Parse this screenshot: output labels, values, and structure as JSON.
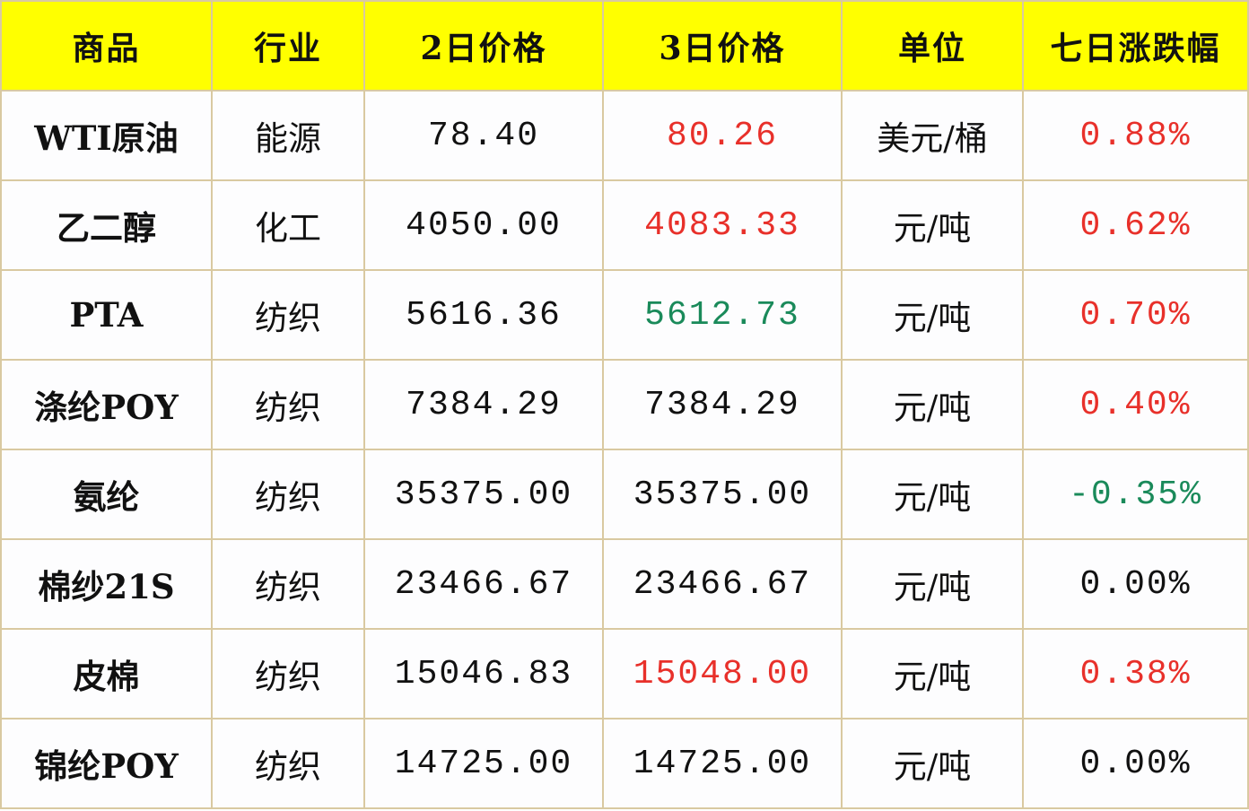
{
  "colors": {
    "header_bg": "#ffff00",
    "up": "#e8302a",
    "down": "#1a8a5a",
    "neutral": "#111111",
    "border": "#d9c9a1"
  },
  "headers": [
    "商品",
    "行业",
    "2日价格",
    "3日价格",
    "单位",
    "七日涨跌幅"
  ],
  "rows": [
    {
      "name": "WTI原油",
      "industry": "能源",
      "price_2": "78.40",
      "price_3": "80.26",
      "price_3_trend": "up",
      "unit": "美元/桶",
      "change_7d": "0.88%",
      "change_trend": "up"
    },
    {
      "name": "乙二醇",
      "industry": "化工",
      "price_2": "4050.00",
      "price_3": "4083.33",
      "price_3_trend": "up",
      "unit": "元/吨",
      "change_7d": "0.62%",
      "change_trend": "up"
    },
    {
      "name": "PTA",
      "industry": "纺织",
      "price_2": "5616.36",
      "price_3": "5612.73",
      "price_3_trend": "down",
      "unit": "元/吨",
      "change_7d": "0.70%",
      "change_trend": "up"
    },
    {
      "name": "涤纶POY",
      "industry": "纺织",
      "price_2": "7384.29",
      "price_3": "7384.29",
      "price_3_trend": "neutral",
      "unit": "元/吨",
      "change_7d": "0.40%",
      "change_trend": "up"
    },
    {
      "name": "氨纶",
      "industry": "纺织",
      "price_2": "35375.00",
      "price_3": "35375.00",
      "price_3_trend": "neutral",
      "unit": "元/吨",
      "change_7d": "-0.35%",
      "change_trend": "down"
    },
    {
      "name": "棉纱21S",
      "industry": "纺织",
      "price_2": "23466.67",
      "price_3": "23466.67",
      "price_3_trend": "neutral",
      "unit": "元/吨",
      "change_7d": "0.00%",
      "change_trend": "neutral"
    },
    {
      "name": "皮棉",
      "industry": "纺织",
      "price_2": "15046.83",
      "price_3": "15048.00",
      "price_3_trend": "up",
      "unit": "元/吨",
      "change_7d": "0.38%",
      "change_trend": "up"
    },
    {
      "name": "锦纶POY",
      "industry": "纺织",
      "price_2": "14725.00",
      "price_3": "14725.00",
      "price_3_trend": "neutral",
      "unit": "元/吨",
      "change_7d": "0.00%",
      "change_trend": "neutral"
    }
  ]
}
